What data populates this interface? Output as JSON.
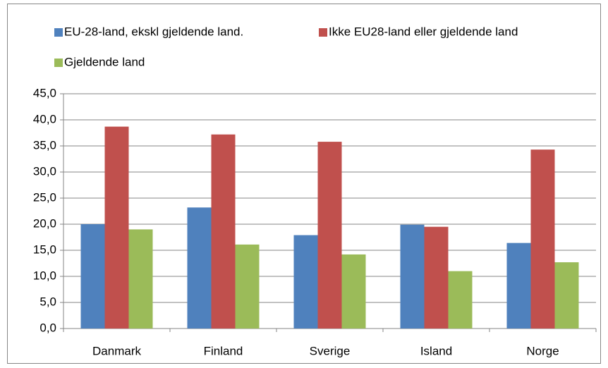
{
  "chart_data": {
    "type": "bar",
    "categories": [
      "Danmark",
      "Finland",
      "Sverige",
      "Island",
      "Norge"
    ],
    "series": [
      {
        "name": "EU-28-land, ekskl gjeldende land.",
        "color": "#4f81bd",
        "values": [
          20.0,
          23.2,
          17.9,
          19.9,
          16.4
        ]
      },
      {
        "name": "Ikke EU28-land eller gjeldende land",
        "color": "#c0504d",
        "values": [
          38.7,
          37.2,
          35.8,
          19.5,
          34.3
        ]
      },
      {
        "name": "Gjeldende land",
        "color": "#9bbb59",
        "values": [
          19.0,
          16.1,
          14.2,
          11.0,
          12.7
        ]
      }
    ],
    "ylim": [
      0,
      45
    ],
    "yticks": [
      {
        "value": 0,
        "label": "0,0"
      },
      {
        "value": 5,
        "label": "5,0"
      },
      {
        "value": 10,
        "label": "10,0"
      },
      {
        "value": 15,
        "label": "15,0"
      },
      {
        "value": 20,
        "label": "20,0"
      },
      {
        "value": 25,
        "label": "25,0"
      },
      {
        "value": 30,
        "label": "30,0"
      },
      {
        "value": 35,
        "label": "35,0"
      },
      {
        "value": 40,
        "label": "40,0"
      },
      {
        "value": 45,
        "label": "45,0"
      }
    ],
    "grid": true,
    "legend": "top"
  }
}
